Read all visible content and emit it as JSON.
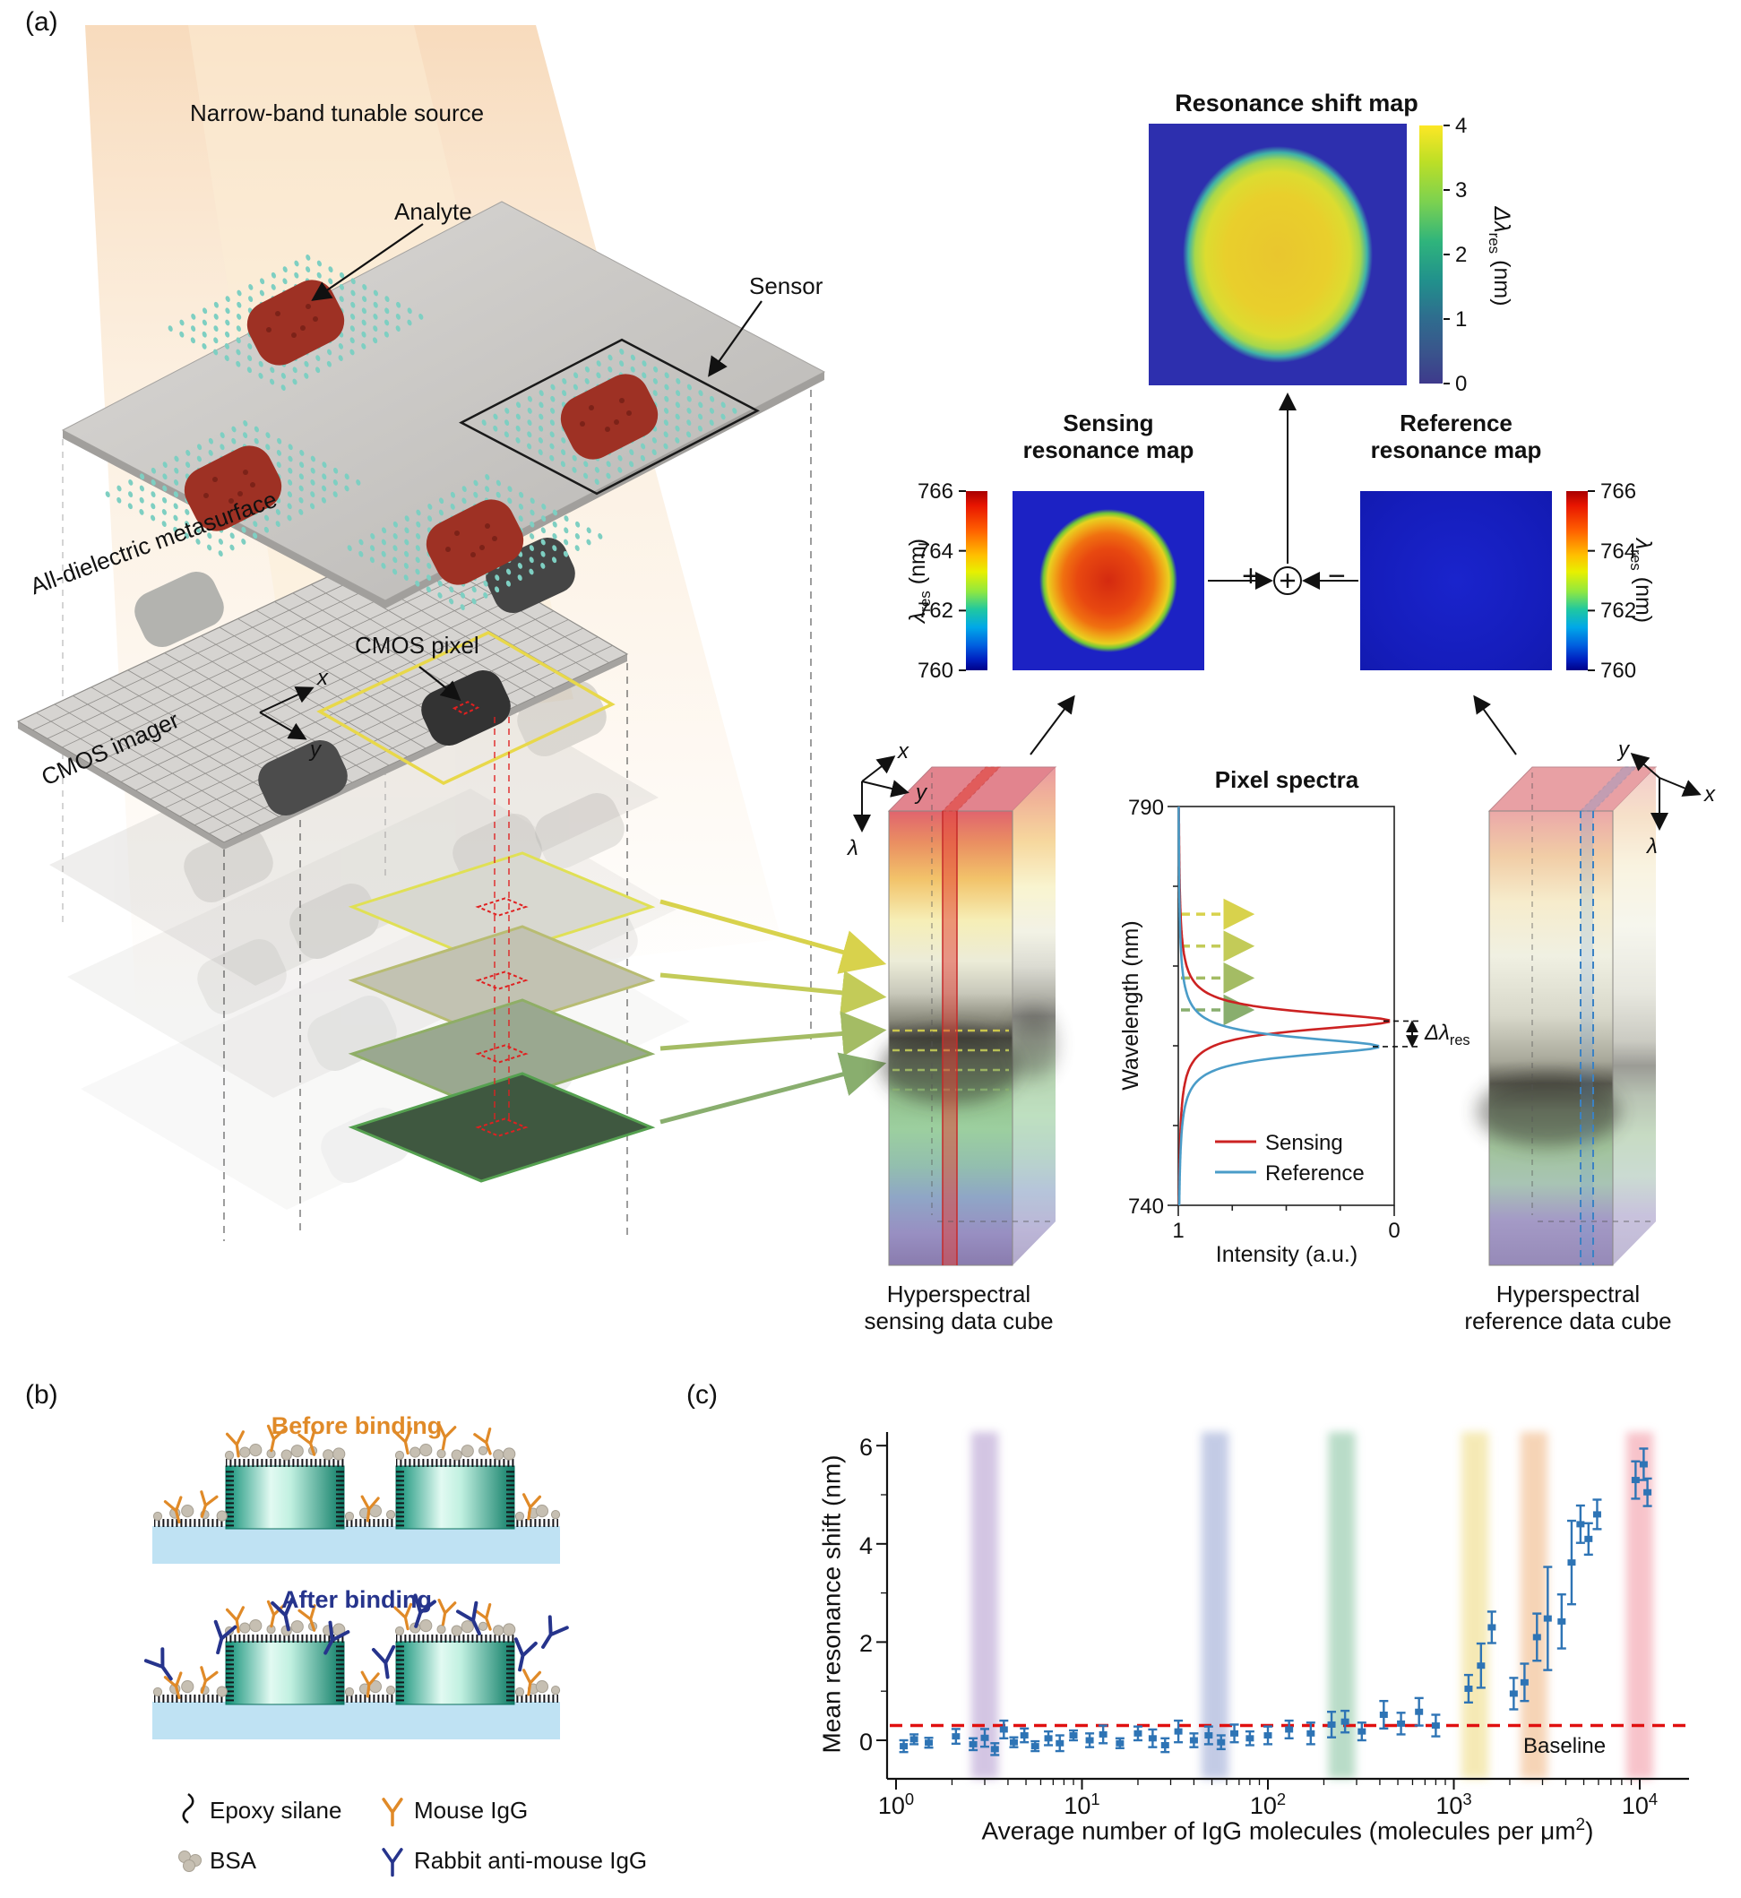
{
  "panel_labels": {
    "a": "(a)",
    "b": "(b)",
    "c": "(c)"
  },
  "schematic": {
    "source": "Narrow-band tunable source",
    "analyte": "Analyte",
    "sensor": "Sensor",
    "metasurface": "All-dielectric metasurface",
    "cmos_imager": "CMOS imager",
    "cmos_pixel": "CMOS pixel",
    "axes": {
      "x": "x",
      "y": "y",
      "lambda": "λ"
    }
  },
  "maps": {
    "shift": {
      "title": "Resonance shift map",
      "ticks": [
        "4",
        "3",
        "2",
        "1",
        "0"
      ],
      "label_prefix": "Δλ",
      "label_sub": "res",
      "label_unit": " (nm)"
    },
    "sensing": {
      "title1": "Sensing",
      "title2": "resonance map",
      "ticks": [
        "766",
        "764",
        "762",
        "760"
      ],
      "label_prefix": "λ",
      "label_sub": "res",
      "label_unit": " (nm)"
    },
    "reference": {
      "title1": "Reference",
      "title2": "resonance map",
      "ticks": [
        "766",
        "764",
        "762",
        "760"
      ],
      "label_prefix": "λ",
      "label_sub": "res",
      "label_unit": " (nm)"
    },
    "plus": "+",
    "minus": "−"
  },
  "cubes": {
    "sensing_line1": "Hyperspectral",
    "sensing_line2": "sensing data cube",
    "reference_line1": "Hyperspectral",
    "reference_line2": "reference data cube"
  },
  "binding": {
    "before": "Before binding",
    "after": "After binding",
    "legend": {
      "epoxy": "Epoxy silane",
      "mouse": "Mouse IgG",
      "bsa": "BSA",
      "rabbit": "Rabbit anti-mouse IgG"
    },
    "colors": {
      "before_title": "#e08a28",
      "after_title": "#26348c",
      "mouse_igg": "#e08a28",
      "rabbit_igg": "#26348c",
      "block": "#0d8f75",
      "substrate": "#bfe2f3",
      "bsa": "#c6bfb2"
    }
  },
  "chart_data": [
    {
      "id": "pixel-spectra",
      "type": "line",
      "title": "Pixel spectra",
      "xlabel": "Intensity (a.u.)",
      "ylabel": "Wavelength (nm)",
      "x_ticks": [
        "1",
        "0"
      ],
      "y_ticks": [
        "790",
        "740"
      ],
      "wavelength_range": [
        740,
        790
      ],
      "intensity_range": [
        1,
        0
      ],
      "series": [
        {
          "name": "Sensing",
          "color": "#cc2222",
          "dip_center": 763.1,
          "dip_fwhm": 2.8,
          "dip_min": 0.02
        },
        {
          "name": "Reference",
          "color": "#4a9cc8",
          "dip_center": 759.9,
          "dip_fwhm": 2.8,
          "dip_min": 0.07
        }
      ],
      "annotation": {
        "label_prefix": "Δλ",
        "label_sub": "res"
      },
      "probe_wavelengths": [
        776.5,
        772.5,
        768.5,
        764.5
      ],
      "probe_colors": [
        "#d8d24c",
        "#c3cb58",
        "#a4bc64",
        "#89ae6e"
      ]
    },
    {
      "id": "igg-response",
      "type": "scatter",
      "xlabel_parts": {
        "pre": "Average number of IgG molecules (molecules per μm",
        "sup": "2",
        "post": ")"
      },
      "ylabel": "Mean resonance shift (nm)",
      "x_scale": "log",
      "x_exponent_ticks": [
        0,
        1,
        2,
        3,
        4
      ],
      "y_ticks": [
        0,
        2,
        4,
        6
      ],
      "y_range": [
        -0.78,
        6.28
      ],
      "baseline": {
        "value": 0.3,
        "label": "Baseline",
        "color": "#e01010"
      },
      "point_color": "#2e74b5",
      "bands": [
        {
          "x": 3,
          "color": "#a88cc8"
        },
        {
          "x": 52,
          "color": "#8898cc"
        },
        {
          "x": 250,
          "color": "#74ba92"
        },
        {
          "x": 1300,
          "color": "#ecd56e"
        },
        {
          "x": 2700,
          "color": "#eeaa70"
        },
        {
          "x": 10000,
          "color": "#f08896"
        }
      ],
      "points": [
        [
          1.1,
          -0.12,
          0.12
        ],
        [
          1.25,
          0.02,
          0.1
        ],
        [
          1.5,
          -0.05,
          0.1
        ],
        [
          2.1,
          0.08,
          0.15
        ],
        [
          2.6,
          -0.08,
          0.12
        ],
        [
          3,
          0.05,
          0.18
        ],
        [
          3.4,
          -0.18,
          0.12
        ],
        [
          3.8,
          0.22,
          0.18
        ],
        [
          4.3,
          -0.04,
          0.1
        ],
        [
          4.9,
          0.1,
          0.14
        ],
        [
          5.6,
          -0.12,
          0.1
        ],
        [
          6.6,
          0.04,
          0.14
        ],
        [
          7.6,
          -0.06,
          0.16
        ],
        [
          9,
          0.1,
          0.1
        ],
        [
          11,
          0,
          0.14
        ],
        [
          13,
          0.12,
          0.18
        ],
        [
          16,
          -0.06,
          0.1
        ],
        [
          20,
          0.14,
          0.14
        ],
        [
          24,
          0.04,
          0.18
        ],
        [
          28,
          -0.1,
          0.14
        ],
        [
          33,
          0.18,
          0.22
        ],
        [
          40,
          0,
          0.14
        ],
        [
          48,
          0.1,
          0.18
        ],
        [
          56,
          -0.04,
          0.14
        ],
        [
          66,
          0.14,
          0.18
        ],
        [
          80,
          0.04,
          0.14
        ],
        [
          100,
          0.1,
          0.18
        ],
        [
          130,
          0.22,
          0.18
        ],
        [
          170,
          0.14,
          0.22
        ],
        [
          220,
          0.32,
          0.26
        ],
        [
          260,
          0.38,
          0.22
        ],
        [
          320,
          0.18,
          0.18
        ],
        [
          420,
          0.52,
          0.28
        ],
        [
          520,
          0.34,
          0.22
        ],
        [
          650,
          0.58,
          0.28
        ],
        [
          800,
          0.3,
          0.22
        ],
        [
          1200,
          1.05,
          0.28
        ],
        [
          1400,
          1.52,
          0.45
        ],
        [
          1600,
          2.3,
          0.32
        ],
        [
          2100,
          0.95,
          0.32
        ],
        [
          2400,
          1.18,
          0.38
        ],
        [
          2800,
          2.1,
          0.48
        ],
        [
          3200,
          2.48,
          1.05
        ],
        [
          3800,
          2.42,
          0.55
        ],
        [
          4300,
          3.62,
          0.85
        ],
        [
          4800,
          4.4,
          0.38
        ],
        [
          5300,
          4.1,
          0.32
        ],
        [
          5900,
          4.6,
          0.3
        ],
        [
          9500,
          5.3,
          0.38
        ],
        [
          10500,
          5.62,
          0.32
        ],
        [
          11000,
          5.05,
          0.28
        ]
      ]
    }
  ]
}
